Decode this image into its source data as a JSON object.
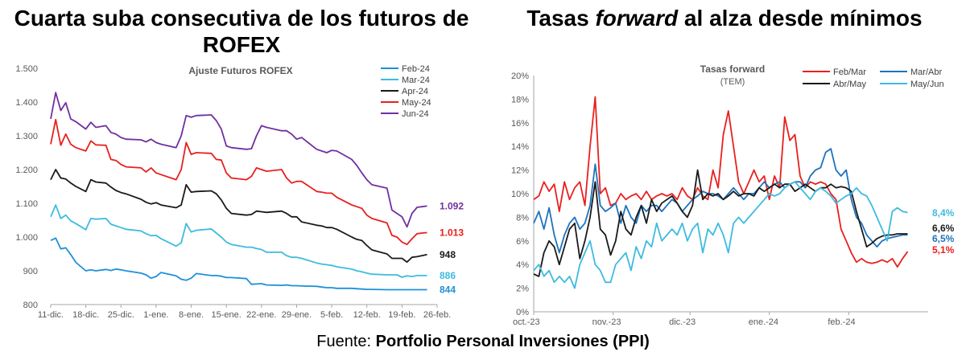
{
  "titles": {
    "left": "Cuarta suba consecutiva de los futuros de ROFEX",
    "right_pre": "Tasas ",
    "right_em": "forward",
    "right_post": " al alza desde mínimos"
  },
  "footer": {
    "label": "Fuente: ",
    "source": "Portfolio Personal Inversiones (PPI)"
  },
  "chart_data": [
    {
      "type": "line",
      "title": "Ajuste Futuros ROFEX",
      "xlabel": "",
      "ylabel": "",
      "ylim": [
        800,
        1500
      ],
      "yticks": [
        "800",
        "900",
        "1.000",
        "1.100",
        "1.200",
        "1.300",
        "1.400",
        "1.500"
      ],
      "ytick_values": [
        800,
        900,
        1000,
        1100,
        1200,
        1300,
        1400,
        1500
      ],
      "xticks": [
        "11-dic.",
        "18-dic.",
        "25-dic.",
        "1-ene.",
        "8-ene.",
        "15-ene.",
        "22-ene.",
        "29-ene.",
        "5-feb.",
        "12-feb.",
        "19-feb.",
        "26-feb."
      ],
      "xtick_days": [
        0,
        7,
        14,
        21,
        28,
        35,
        42,
        49,
        56,
        63,
        70,
        77
      ],
      "xlim": [
        0,
        77
      ],
      "x": [
        0,
        1,
        2,
        3,
        4,
        5,
        7,
        8,
        9,
        11,
        12,
        13,
        14,
        15,
        18,
        19,
        20,
        21,
        22,
        25,
        26,
        27,
        28,
        29,
        32,
        33,
        34,
        35,
        36,
        39,
        40,
        41,
        42,
        43,
        46,
        47,
        48,
        49,
        50,
        53,
        54,
        55,
        56,
        57,
        60,
        61,
        62,
        63,
        64,
        67,
        68,
        69,
        70,
        71,
        72,
        73,
        74,
        75
      ],
      "series": [
        {
          "name": "Feb-24",
          "color": "#1e90d8",
          "end_label": "844",
          "values": [
            990,
            997,
            965,
            968,
            948,
            925,
            900,
            903,
            900,
            904,
            901,
            905,
            903,
            900,
            893,
            888,
            878,
            883,
            895,
            885,
            875,
            872,
            878,
            892,
            886,
            886,
            884,
            880,
            880,
            877,
            860,
            861,
            862,
            858,
            857,
            858,
            856,
            856,
            855,
            854,
            852,
            850,
            850,
            848,
            848,
            847,
            846,
            845,
            845,
            844,
            844,
            844,
            844,
            844,
            844,
            844,
            844,
            844
          ]
        },
        {
          "name": "Mar-24",
          "color": "#3dbbe0",
          "end_label": "886",
          "values": [
            1060,
            1095,
            1055,
            1065,
            1048,
            1040,
            1022,
            1055,
            1053,
            1055,
            1038,
            1033,
            1028,
            1023,
            1018,
            1010,
            1004,
            1005,
            995,
            973,
            983,
            1040,
            1015,
            1020,
            1024,
            1012,
            1000,
            985,
            978,
            970,
            970,
            966,
            963,
            955,
            955,
            945,
            940,
            940,
            937,
            923,
            920,
            918,
            916,
            912,
            905,
            900,
            897,
            893,
            890,
            888,
            888,
            888,
            881,
            885,
            883,
            886,
            886,
            886
          ]
        },
        {
          "name": "Apr-24",
          "color": "#1a1a1a",
          "end_label": "948",
          "values": [
            1170,
            1200,
            1175,
            1172,
            1160,
            1150,
            1135,
            1170,
            1163,
            1160,
            1148,
            1138,
            1132,
            1128,
            1112,
            1103,
            1098,
            1102,
            1095,
            1087,
            1095,
            1155,
            1133,
            1135,
            1137,
            1128,
            1110,
            1085,
            1070,
            1065,
            1067,
            1077,
            1075,
            1073,
            1077,
            1070,
            1060,
            1060,
            1045,
            1035,
            1033,
            1028,
            1028,
            1023,
            1000,
            993,
            990,
            975,
            962,
            950,
            937,
            937,
            937,
            926,
            940,
            942,
            945,
            948
          ]
        },
        {
          "name": "May-24",
          "color": "#e8201e",
          "end_label": "1.013",
          "values": [
            1275,
            1348,
            1272,
            1305,
            1275,
            1265,
            1255,
            1285,
            1273,
            1272,
            1230,
            1227,
            1215,
            1208,
            1205,
            1193,
            1205,
            1190,
            1185,
            1170,
            1200,
            1280,
            1245,
            1250,
            1248,
            1230,
            1228,
            1190,
            1175,
            1170,
            1180,
            1205,
            1200,
            1195,
            1200,
            1175,
            1160,
            1165,
            1165,
            1135,
            1133,
            1130,
            1130,
            1118,
            1095,
            1090,
            1085,
            1065,
            1055,
            1042,
            1005,
            1000,
            985,
            978,
            995,
            1010,
            1012,
            1013
          ]
        },
        {
          "name": "Jun-24",
          "color": "#7030a0",
          "end_label": "1.092",
          "values": [
            1350,
            1428,
            1375,
            1398,
            1350,
            1342,
            1320,
            1340,
            1325,
            1330,
            1310,
            1305,
            1295,
            1290,
            1288,
            1282,
            1290,
            1280,
            1275,
            1265,
            1300,
            1360,
            1355,
            1360,
            1362,
            1345,
            1320,
            1270,
            1265,
            1260,
            1262,
            1300,
            1330,
            1325,
            1315,
            1315,
            1305,
            1290,
            1295,
            1260,
            1255,
            1250,
            1257,
            1255,
            1230,
            1212,
            1190,
            1170,
            1155,
            1145,
            1080,
            1070,
            1060,
            1030,
            1070,
            1088,
            1090,
            1092
          ]
        }
      ]
    },
    {
      "type": "line",
      "title": "Tasas forward",
      "subtitle": "(TEM)",
      "xlabel": "",
      "ylabel": "",
      "ylim": [
        0,
        20
      ],
      "yticks": [
        "0%",
        "2%",
        "4%",
        "6%",
        "8%",
        "10%",
        "12%",
        "14%",
        "16%",
        "18%",
        "20%"
      ],
      "ytick_values": [
        0,
        2,
        4,
        6,
        8,
        10,
        12,
        14,
        16,
        18,
        20
      ],
      "xticks": [
        "oct.-23",
        "nov.-23",
        "dic.-23",
        "ene.-24",
        "feb.-24"
      ],
      "xtick_days": [
        0,
        31,
        61,
        92,
        123
      ],
      "xlim": [
        0,
        154
      ],
      "x": [
        0,
        2,
        4,
        6,
        8,
        10,
        12,
        14,
        16,
        18,
        20,
        22,
        24,
        26,
        28,
        30,
        32,
        34,
        36,
        38,
        40,
        42,
        44,
        46,
        48,
        50,
        52,
        54,
        56,
        58,
        60,
        62,
        64,
        66,
        68,
        70,
        72,
        74,
        76,
        78,
        80,
        82,
        84,
        86,
        88,
        90,
        92,
        94,
        96,
        98,
        100,
        102,
        104,
        106,
        108,
        110,
        112,
        114,
        116,
        118,
        120,
        122,
        124,
        126,
        128,
        130,
        132,
        134,
        136,
        138,
        140,
        142,
        144,
        146
      ],
      "series": [
        {
          "name": "Feb/Mar",
          "color": "#e8201e",
          "end_label": "5,1%",
          "values": [
            9.5,
            9.8,
            11,
            10.2,
            10.8,
            8.5,
            11,
            9.5,
            10.5,
            11,
            9,
            14,
            18.2,
            10,
            10.5,
            9,
            9.2,
            10,
            9.5,
            9.8,
            10,
            9.5,
            10.2,
            9.5,
            9.8,
            10,
            9.8,
            10,
            9.5,
            10.5,
            9.8,
            9.5,
            10.5,
            9.8,
            9.5,
            12,
            10.5,
            15,
            17,
            14,
            11,
            10,
            11,
            12,
            11,
            11.5,
            9.5,
            11.5,
            10.5,
            16.5,
            14.5,
            15,
            11.5,
            10.5,
            11,
            10.8,
            11,
            10.8,
            10,
            9.5,
            7,
            6,
            5,
            4.2,
            4.5,
            4.2,
            4.1,
            4.2,
            4.4,
            4.2,
            4.5,
            3.8,
            4.5,
            5.1
          ]
        },
        {
          "name": "Mar/Abr",
          "color": "#1e73be",
          "end_label": "6,5%",
          "values": [
            7.5,
            8.5,
            7,
            8.8,
            6.5,
            5,
            6.5,
            7.5,
            8,
            7,
            7.5,
            9,
            12.5,
            9,
            8.5,
            8.8,
            9.2,
            7.5,
            9,
            8,
            7.5,
            9,
            8.5,
            9,
            9,
            8.5,
            9,
            9.5,
            9.2,
            8.5,
            9,
            9.5,
            9.8,
            10.2,
            10,
            10,
            9.8,
            9.5,
            10,
            10.5,
            10,
            9.5,
            10,
            10,
            10.5,
            11,
            10.5,
            10.8,
            11,
            10.5,
            10.8,
            11,
            11,
            10.5,
            11.5,
            12,
            12.2,
            13.5,
            13.8,
            12,
            11.5,
            12,
            9.5,
            8,
            7.5,
            6.5,
            6,
            5.5,
            6,
            6.2,
            6.3,
            6.4,
            6.5,
            6.5
          ]
        },
        {
          "name": "Abr/May",
          "color": "#1a1a1a",
          "end_label": "6,6%",
          "values": [
            3.2,
            3,
            5,
            6,
            5.5,
            4,
            5.5,
            7,
            7.5,
            4.5,
            6,
            8,
            11,
            7,
            6.5,
            4.8,
            6,
            8.5,
            7,
            6.5,
            8,
            9,
            7.5,
            9.5,
            8.5,
            9.2,
            9.5,
            9.8,
            9.2,
            8.5,
            8,
            9,
            12,
            9.5,
            10,
            9.8,
            10,
            9.5,
            9.8,
            10.2,
            9.8,
            10,
            10,
            9.8,
            10.5,
            10.2,
            10.5,
            10.8,
            10.5,
            10.8,
            10.8,
            10.2,
            10.5,
            10.8,
            10.5,
            10.2,
            10.5,
            10.5,
            10.8,
            10.5,
            10.6,
            10.5,
            10.2,
            8.5,
            7,
            5.5,
            5.8,
            6.2,
            6.4,
            6.5,
            6.5,
            6.6,
            6.6,
            6.6
          ]
        },
        {
          "name": "May/Jun",
          "color": "#3dbbe0",
          "end_label": "8,4%",
          "values": [
            3.5,
            4,
            3,
            3.5,
            2.5,
            3,
            2.5,
            3,
            2,
            4,
            5,
            6,
            4,
            3.5,
            2.5,
            2.5,
            4,
            4.5,
            5,
            3.5,
            5.5,
            4.5,
            6,
            5.5,
            7.5,
            6,
            6.5,
            7,
            6.5,
            7.5,
            6,
            7,
            7.5,
            5,
            7,
            6.5,
            7.5,
            6.5,
            5,
            7.5,
            8,
            7.5,
            8,
            8.5,
            9,
            9.5,
            10,
            9.8,
            10,
            10.5,
            10.8,
            11,
            10.5,
            10,
            9.5,
            10.2,
            10.5,
            10.2,
            9.8,
            9.2,
            9.5,
            9.8,
            10,
            10.5,
            10,
            9.8,
            9,
            8,
            7,
            6,
            8.5,
            8.8,
            8.5,
            8.4
          ]
        }
      ]
    }
  ]
}
